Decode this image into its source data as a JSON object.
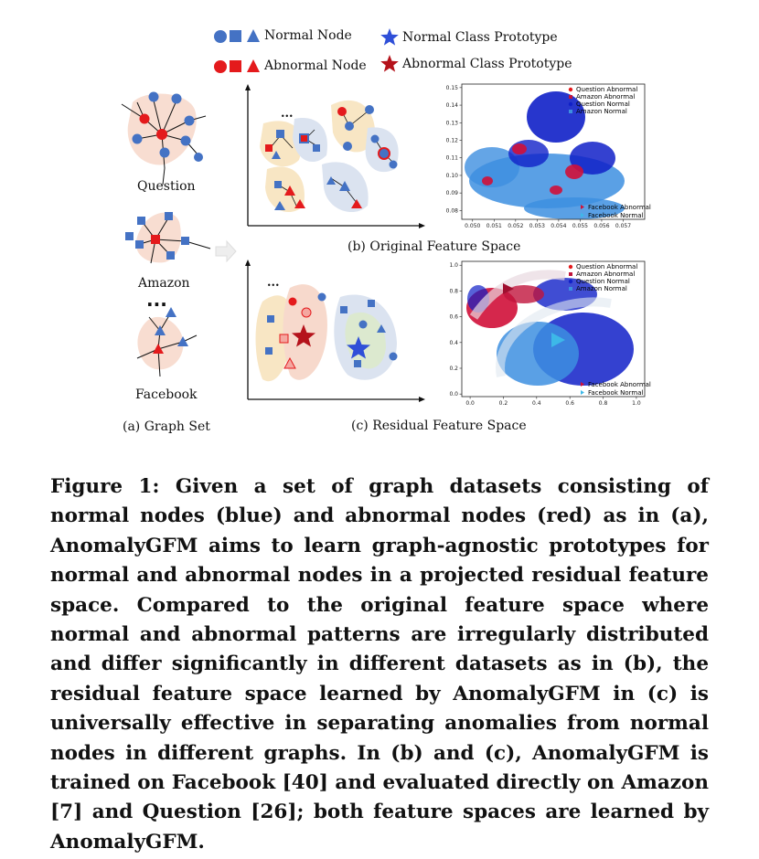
{
  "legend": {
    "normal_node": "Normal Node",
    "abnormal_node": "Abnormal Node",
    "normal_prototype": "Normal Class  Prototype",
    "abnormal_prototype": "Abnormal Class Prototype"
  },
  "graph_set": {
    "labels": [
      "Question",
      "Amazon",
      "Facebook"
    ],
    "ellipsis": "...",
    "caption": "(a) Graph Set"
  },
  "panels": {
    "original": "(b)  Original  Feature Space",
    "residual": "(c)  Residual  Feature Space",
    "ellipsis": "..."
  },
  "chart_data": [
    {
      "type": "scatter",
      "title": "",
      "xlabel": "",
      "ylabel": "",
      "xlim": [
        0.0495,
        0.058
      ],
      "ylim": [
        0.075,
        0.152
      ],
      "xticks": [
        "0.050",
        "0.051",
        "0.052",
        "0.053",
        "0.054",
        "0.055",
        "0.056",
        "0.057"
      ],
      "yticks": [
        "0.08",
        "0.09",
        "0.10",
        "0.11",
        "0.12",
        "0.13",
        "0.14",
        "0.15"
      ],
      "legend_top": [
        "Question Abnormal",
        "Amazon Abnormal",
        "Question Normal",
        "Amazon Normal"
      ],
      "legend_bottom": [
        "Facebook Abnormal",
        "Facebook Normal"
      ]
    },
    {
      "type": "scatter",
      "title": "",
      "xlabel": "",
      "ylabel": "",
      "xlim": [
        -0.05,
        1.05
      ],
      "ylim": [
        -0.02,
        1.03
      ],
      "xticks": [
        "0.0",
        "0.2",
        "0.4",
        "0.6",
        "0.8",
        "1.0"
      ],
      "yticks": [
        "0.0",
        "0.2",
        "0.4",
        "0.6",
        "0.8",
        "1.0"
      ],
      "legend_top": [
        "Question Abnormal",
        "Amazon Abnormal",
        "Question Normal",
        "Amazon Normal"
      ],
      "legend_bottom": [
        "Facebook Abnormal",
        "Facebook Normal"
      ]
    }
  ],
  "caption": "Figure 1: Given a set of graph datasets consisting of normal nodes (blue) and abnormal nodes (red) as in (a), AnomalyGFM aims to learn graph-agnostic prototypes for normal and abnormal nodes in a projected residual feature space. Compared to the original feature space where normal and abnormal patterns are irregularly distributed and differ significantly in different datasets as in (b), the residual feature space learned by AnomalyGFM in (c) is universally effective in separating anomalies from normal nodes in different graphs. In (b) and (c), AnomalyGFM is trained on Facebook [40] and evaluated directly on Amazon [7] and Question [26]; both feature spaces are learned by AnomalyGFM."
}
